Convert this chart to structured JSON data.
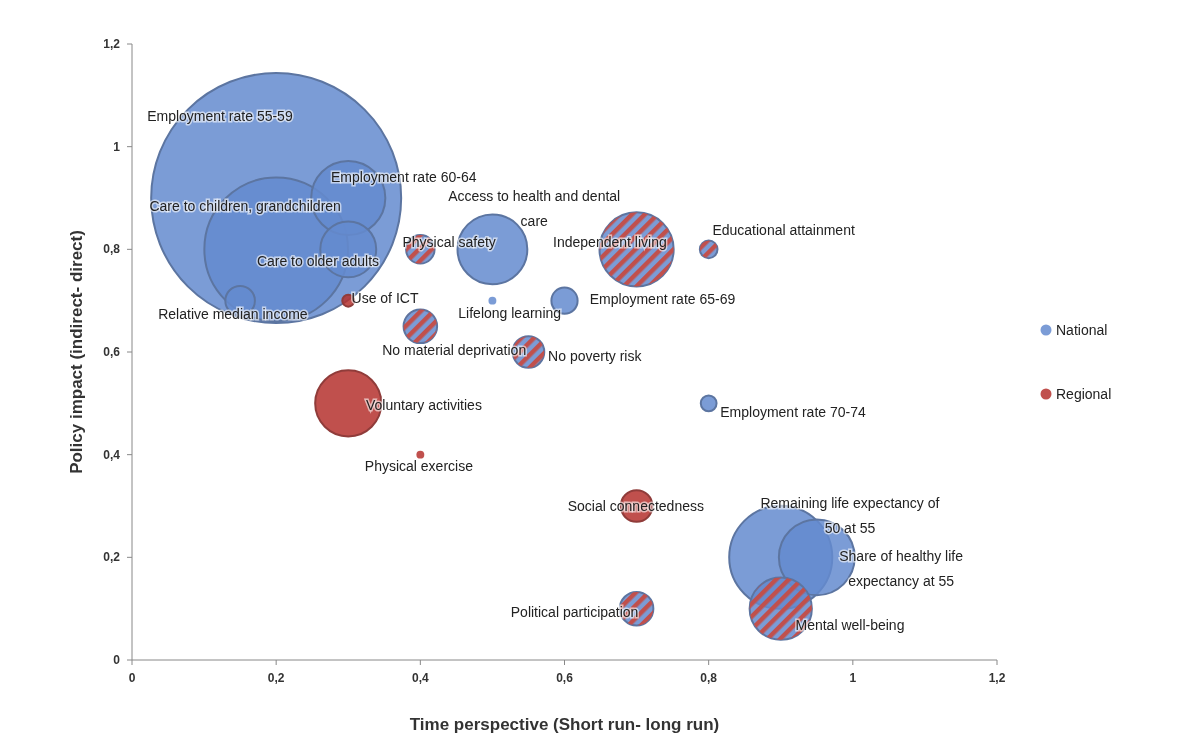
{
  "chart_data": {
    "type": "bubble",
    "xlabel": "Time perspective (Short run- long run)",
    "ylabel": "Policy impact (indirect- direct)",
    "xlim": [
      0,
      1.2
    ],
    "ylim": [
      0,
      1.2
    ],
    "xticks": [
      {
        "value": 0,
        "label": "0"
      },
      {
        "value": 0.2,
        "label": "0,2"
      },
      {
        "value": 0.4,
        "label": "0,4"
      },
      {
        "value": 0.6,
        "label": "0,6"
      },
      {
        "value": 0.8,
        "label": "0,8"
      },
      {
        "value": 1,
        "label": "1"
      },
      {
        "value": 1.2,
        "label": "1,2"
      }
    ],
    "yticks": [
      {
        "value": 0,
        "label": "0"
      },
      {
        "value": 0.2,
        "label": "0,2"
      },
      {
        "value": 0.4,
        "label": "0,4"
      },
      {
        "value": 0.6,
        "label": "0,6"
      },
      {
        "value": 0.8,
        "label": "0,8"
      },
      {
        "value": 1,
        "label": "1"
      },
      {
        "value": 1.2,
        "label": "1,2"
      }
    ],
    "legend": "right",
    "grid": false,
    "series": [
      {
        "name": "National",
        "color": "#7b9cd6",
        "x": [
          0.2,
          0.3,
          0.2,
          0.3,
          0.15,
          0.4,
          0.5,
          0.5,
          0.7,
          0.8,
          0.6,
          0.4,
          0.55,
          0.8,
          0.9,
          0.95,
          0.9,
          0.7
        ],
        "values": [
          0.9,
          0.9,
          0.8,
          0.8,
          0.7,
          0.8,
          0.8,
          0.7,
          0.8,
          0.8,
          0.7,
          0.65,
          0.6,
          0.5,
          0.2,
          0.2,
          0.1,
          0.1
        ],
        "sizes": [
          1,
          0.088,
          0.33,
          0.05,
          0.014,
          0.013,
          0.078,
          0.001,
          0.088,
          0.005,
          0.011,
          0.018,
          0.016,
          0.004,
          0.17,
          0.092,
          0.062,
          0.018
        ]
      },
      {
        "name": "Regional",
        "color": "#c0504d",
        "x": [
          0.3,
          0.4,
          0.7,
          0.8,
          0.4,
          0.55,
          0.3,
          0.4,
          0.7,
          0.9,
          0.7
        ],
        "values": [
          0.7,
          0.8,
          0.8,
          0.8,
          0.65,
          0.6,
          0.5,
          0.4,
          0.3,
          0.1,
          0.1
        ],
        "sizes": [
          0.0023,
          0.013,
          0.088,
          0.005,
          0.018,
          0.016,
          0.07,
          0.001,
          0.016,
          0.062,
          0.018
        ]
      }
    ],
    "annotations": [
      "Employment rate 55-59",
      "Employment rate 60-64",
      "Care to children, grandchildren",
      "Care to older adults",
      "Relative median income",
      "Use of ICT",
      "Physical safety",
      "Access to health and dental\ncare",
      "Independent living",
      "Educational attainment",
      "Lifelong learning",
      "Employment rate 65-69",
      "No material deprivation",
      "No poverty risk",
      "Voluntary activities",
      "Physical exercise",
      "Employment rate 70-74",
      "Social connectedness",
      "Remaining life expectancy of\n50 at 55",
      "Share of healthy life\nexpectancy at 55",
      "Political participation",
      "Mental well-being"
    ]
  }
}
